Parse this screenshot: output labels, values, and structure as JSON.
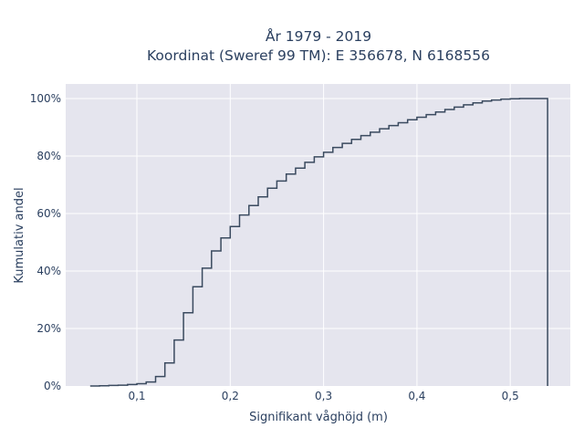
{
  "chart_data": {
    "type": "line",
    "style": "cumulative-step",
    "title_line1": "År 1979 - 2019",
    "title_line2": "Koordinat (Sweref 99 TM): E 356678, N 6168556",
    "xlabel": "Signifikant våghöjd (m)",
    "ylabel": "Kumulativ andel",
    "xlim": [
      0.02,
      0.565
    ],
    "ylim": [
      0,
      1.05
    ],
    "x_ticks": [
      {
        "value": 0.1,
        "label": "0,1"
      },
      {
        "value": 0.2,
        "label": "0,2"
      },
      {
        "value": 0.3,
        "label": "0,3"
      },
      {
        "value": 0.4,
        "label": "0,4"
      },
      {
        "value": 0.5,
        "label": "0,5"
      }
    ],
    "y_ticks": [
      {
        "value": 0,
        "label": "0%"
      },
      {
        "value": 0.2,
        "label": "20%"
      },
      {
        "value": 0.4,
        "label": "40%"
      },
      {
        "value": 0.6,
        "label": "60%"
      },
      {
        "value": 0.8,
        "label": "80%"
      },
      {
        "value": 1.0,
        "label": "100%"
      }
    ],
    "grid": true,
    "line_color": "#3a4a5f",
    "plot_bg": "#e5e5ee",
    "steps": {
      "x": [
        0.05,
        0.06,
        0.07,
        0.08,
        0.09,
        0.1,
        0.11,
        0.12,
        0.13,
        0.14,
        0.15,
        0.16,
        0.17,
        0.18,
        0.19,
        0.2,
        0.21,
        0.22,
        0.23,
        0.24,
        0.25,
        0.26,
        0.27,
        0.28,
        0.29,
        0.3,
        0.31,
        0.32,
        0.33,
        0.34,
        0.35,
        0.36,
        0.37,
        0.38,
        0.39,
        0.4,
        0.41,
        0.42,
        0.43,
        0.44,
        0.45,
        0.46,
        0.47,
        0.48,
        0.49,
        0.5,
        0.51,
        0.52,
        0.53,
        0.54
      ],
      "y": [
        0.0,
        0.001,
        0.002,
        0.003,
        0.005,
        0.008,
        0.014,
        0.033,
        0.08,
        0.16,
        0.255,
        0.345,
        0.41,
        0.47,
        0.515,
        0.555,
        0.595,
        0.628,
        0.658,
        0.688,
        0.713,
        0.737,
        0.758,
        0.778,
        0.797,
        0.813,
        0.83,
        0.844,
        0.858,
        0.871,
        0.883,
        0.895,
        0.906,
        0.916,
        0.926,
        0.935,
        0.944,
        0.953,
        0.962,
        0.97,
        0.978,
        0.985,
        0.991,
        0.995,
        0.998,
        0.999,
        1.0,
        1.0,
        1.0,
        0.0
      ]
    }
  }
}
